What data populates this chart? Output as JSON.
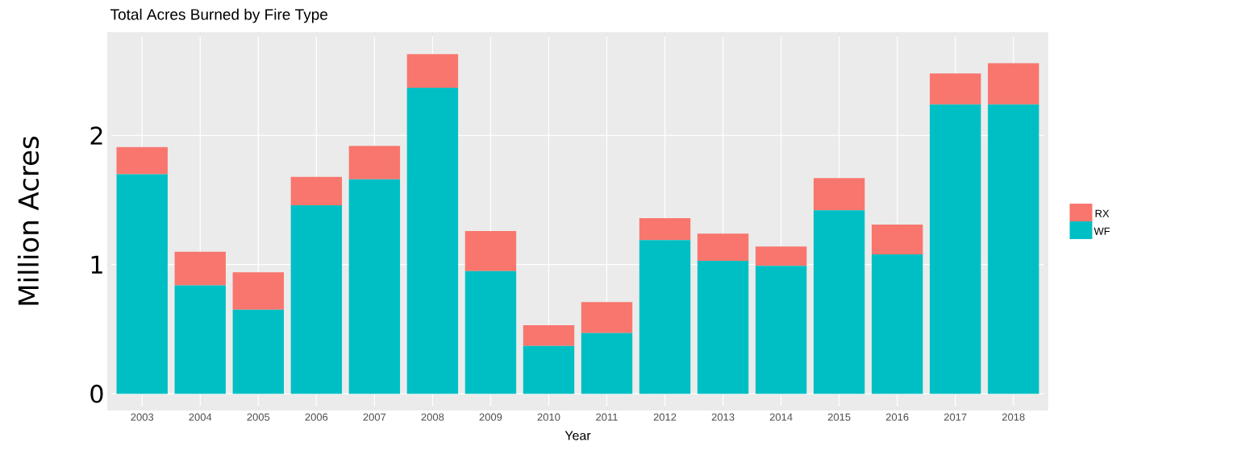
{
  "chart_data": {
    "type": "bar",
    "title": "Total Acres Burned by Fire Type",
    "xlabel": "Year",
    "ylabel": "Million Acres",
    "categories": [
      "2003",
      "2004",
      "2005",
      "2006",
      "2007",
      "2008",
      "2009",
      "2010",
      "2011",
      "2012",
      "2013",
      "2014",
      "2015",
      "2016",
      "2017",
      "2018"
    ],
    "stacked": true,
    "series": [
      {
        "name": "WF",
        "color": "#00bfc4",
        "values": [
          1.7,
          0.84,
          0.65,
          1.46,
          1.66,
          2.37,
          0.95,
          0.37,
          0.47,
          1.19,
          1.03,
          0.99,
          1.42,
          1.08,
          2.24,
          2.24
        ]
      },
      {
        "name": "RX",
        "color": "#f8766d",
        "values": [
          0.21,
          0.26,
          0.29,
          0.22,
          0.26,
          0.26,
          0.31,
          0.16,
          0.24,
          0.17,
          0.21,
          0.15,
          0.25,
          0.23,
          0.24,
          0.32
        ]
      }
    ],
    "ylim": [
      -0.13,
      2.8
    ],
    "yticks": [
      0,
      1,
      2
    ],
    "grid": true,
    "legend": "right"
  }
}
